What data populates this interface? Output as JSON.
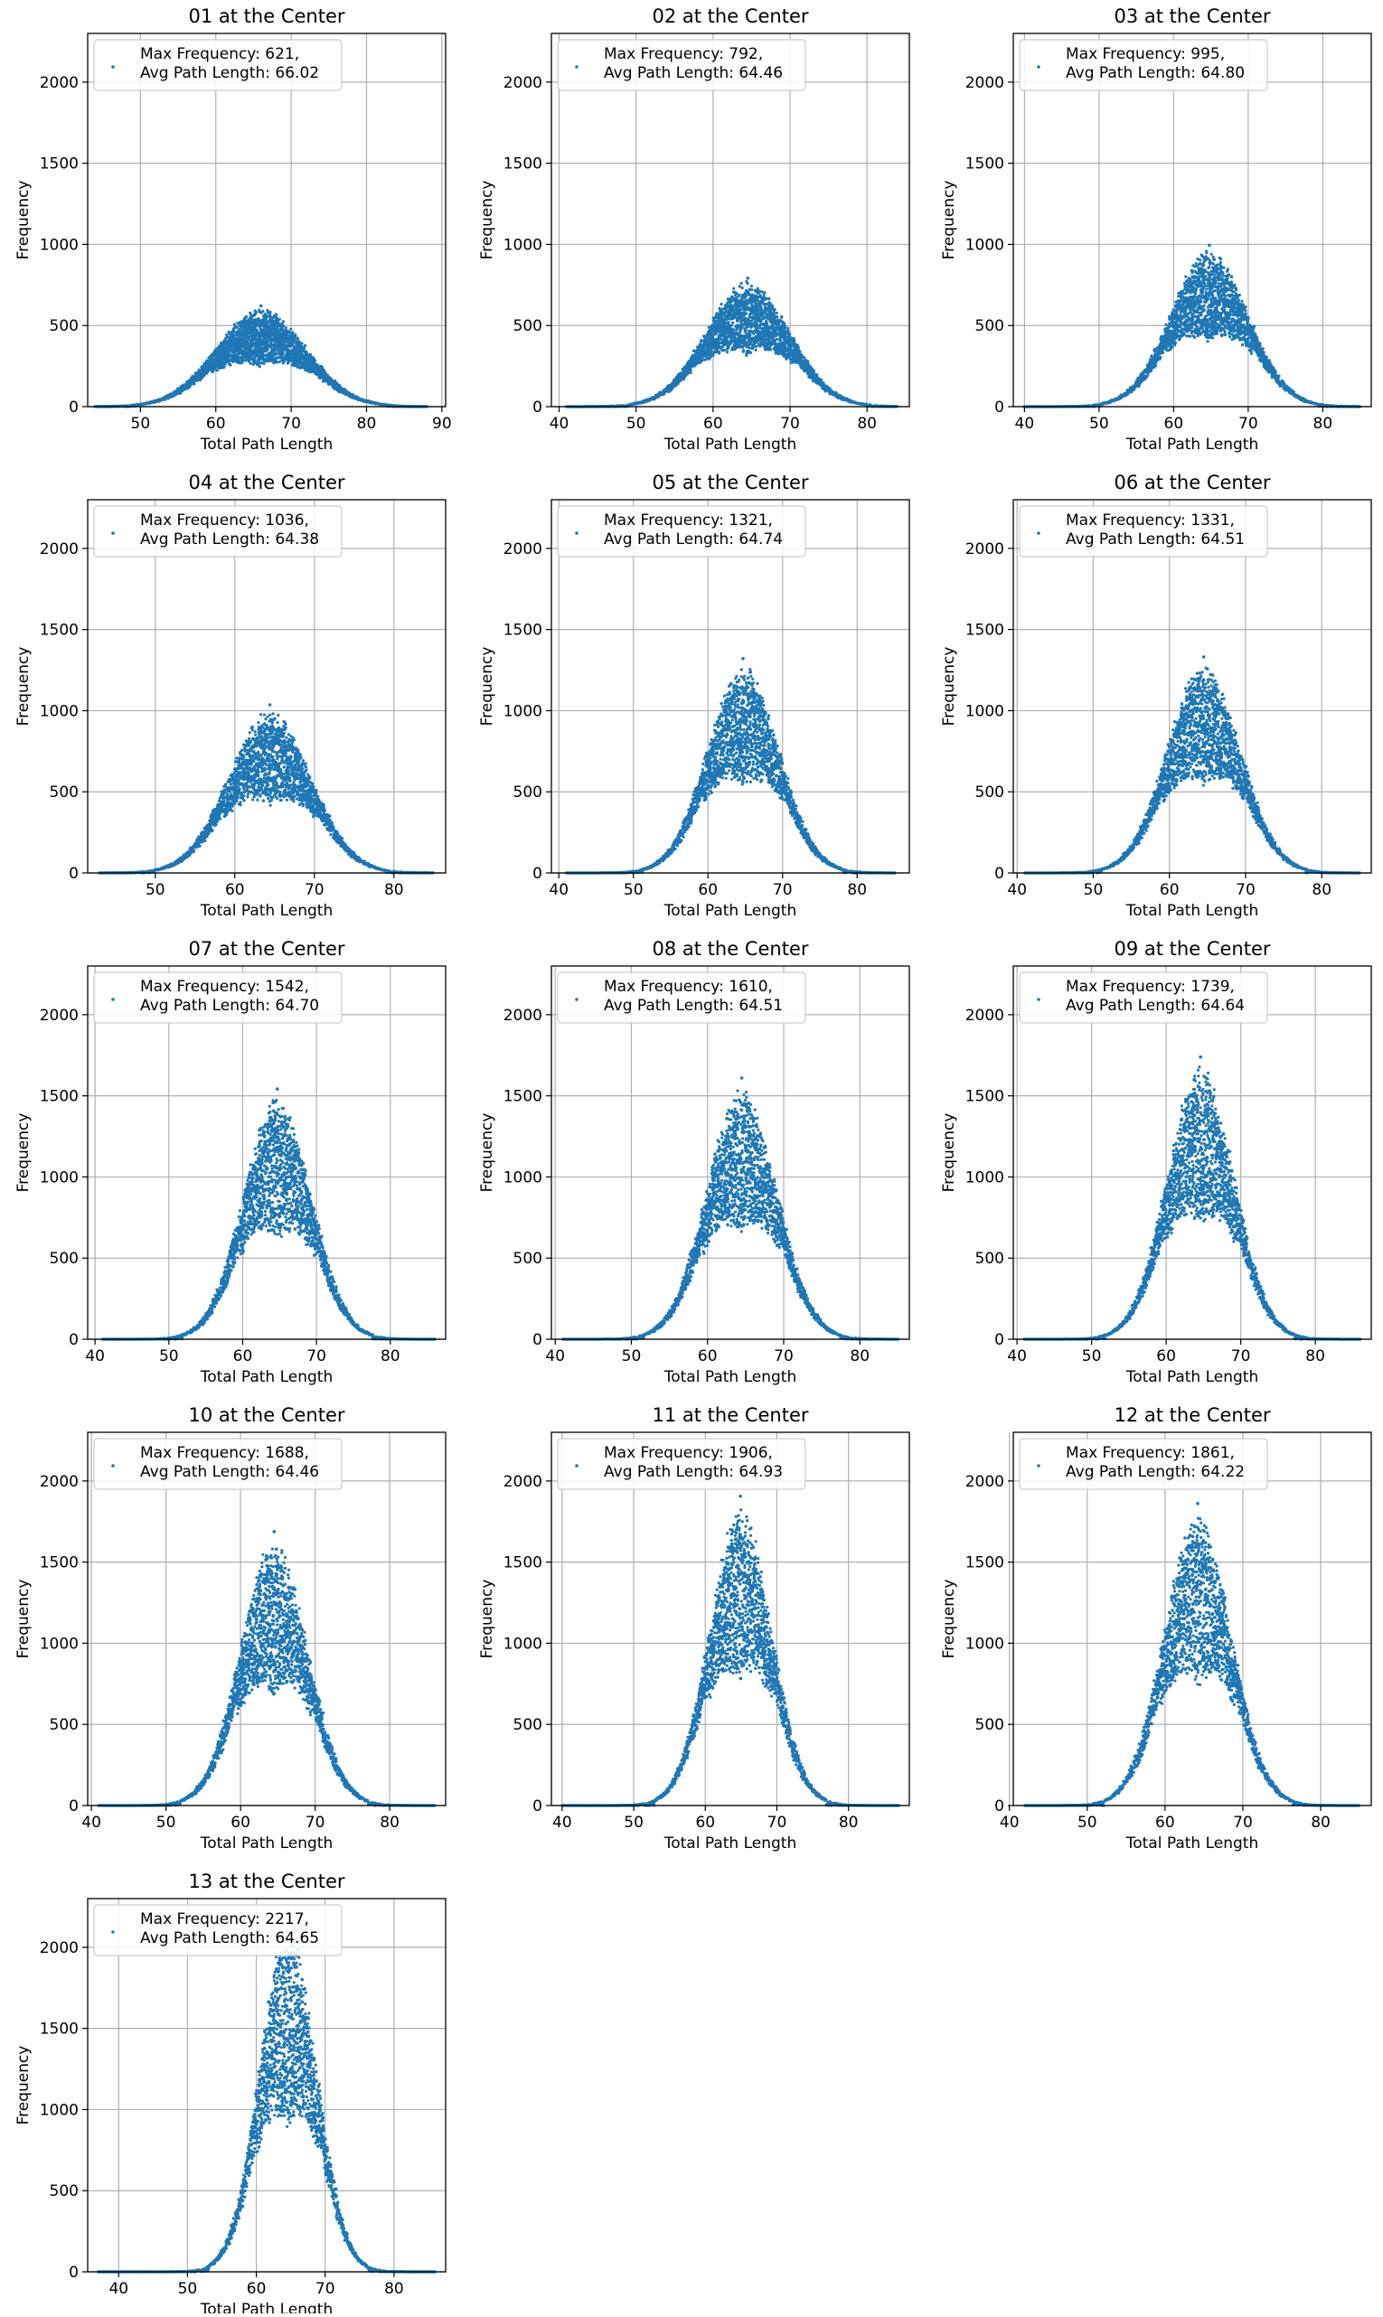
{
  "figure": {
    "background": "#ffffff",
    "marker_color": "#1f77b4",
    "grid_color": "#b0b0b0"
  },
  "chart_data": [
    {
      "type": "scatter",
      "title": "01 at the Center",
      "xlabel": "Total Path Length",
      "ylabel": "Frequency",
      "legend": [
        "Max Frequency: 621,",
        "Avg Path Length: 66.02"
      ],
      "legend_placement": "top-left",
      "xlim": [
        43,
        90.5
      ],
      "ylim": [
        0,
        2300
      ],
      "xticks": [
        50,
        60,
        70,
        80,
        90
      ],
      "yticks": [
        0,
        500,
        1000,
        1500,
        2000
      ],
      "grid": true,
      "max_frequency": 621,
      "avg_path_length": 66.02,
      "peak_x": 66.0,
      "spread": 6.0,
      "extent": [
        44,
        88
      ]
    },
    {
      "type": "scatter",
      "title": "02 at the Center",
      "xlabel": "Total Path Length",
      "ylabel": "Frequency",
      "legend": [
        "Max Frequency: 792,",
        "Avg Path Length: 64.46"
      ],
      "legend_placement": "top-left",
      "xlim": [
        39,
        85.5
      ],
      "ylim": [
        0,
        2300
      ],
      "xticks": [
        40,
        50,
        60,
        70,
        80
      ],
      "yticks": [
        0,
        500,
        1000,
        1500,
        2000
      ],
      "grid": true,
      "max_frequency": 792,
      "avg_path_length": 64.46,
      "peak_x": 64.5,
      "spread": 5.5,
      "extent": [
        41,
        84
      ]
    },
    {
      "type": "scatter",
      "title": "03 at the Center",
      "xlabel": "Total Path Length",
      "ylabel": "Frequency",
      "legend": [
        "Max Frequency: 995,",
        "Avg Path Length: 64.80"
      ],
      "legend_placement": "top-left",
      "xlim": [
        38.5,
        86.5
      ],
      "ylim": [
        0,
        2300
      ],
      "xticks": [
        40,
        50,
        60,
        70,
        80
      ],
      "yticks": [
        0,
        500,
        1000,
        1500,
        2000
      ],
      "grid": true,
      "max_frequency": 995,
      "avg_path_length": 64.8,
      "peak_x": 64.8,
      "spread": 5.2,
      "extent": [
        40,
        85
      ]
    },
    {
      "type": "scatter",
      "title": "04 at the Center",
      "xlabel": "Total Path Length",
      "ylabel": "Frequency",
      "legend": [
        "Max Frequency: 1036,",
        "Avg Path Length: 64.38"
      ],
      "legend_placement": "top-left",
      "xlim": [
        41.5,
        86.5
      ],
      "ylim": [
        0,
        2300
      ],
      "xticks": [
        50,
        60,
        70,
        80
      ],
      "yticks": [
        0,
        500,
        1000,
        1500,
        2000
      ],
      "grid": true,
      "max_frequency": 1036,
      "avg_path_length": 64.38,
      "peak_x": 64.4,
      "spread": 5.2,
      "extent": [
        43,
        85
      ]
    },
    {
      "type": "scatter",
      "title": "05 at the Center",
      "xlabel": "Total Path Length",
      "ylabel": "Frequency",
      "legend": [
        "Max Frequency: 1321,",
        "Avg Path Length: 64.74"
      ],
      "legend_placement": "top-left",
      "xlim": [
        39,
        87
      ],
      "ylim": [
        0,
        2300
      ],
      "xticks": [
        40,
        50,
        60,
        70,
        80
      ],
      "yticks": [
        0,
        500,
        1000,
        1500,
        2000
      ],
      "grid": true,
      "max_frequency": 1321,
      "avg_path_length": 64.74,
      "peak_x": 64.7,
      "spread": 4.8,
      "extent": [
        41,
        85
      ]
    },
    {
      "type": "scatter",
      "title": "06 at the Center",
      "xlabel": "Total Path Length",
      "ylabel": "Frequency",
      "legend": [
        "Max Frequency: 1331,",
        "Avg Path Length: 64.51"
      ],
      "legend_placement": "top-left",
      "xlim": [
        39.5,
        86.5
      ],
      "ylim": [
        0,
        2300
      ],
      "xticks": [
        40,
        50,
        60,
        70,
        80
      ],
      "yticks": [
        0,
        500,
        1000,
        1500,
        2000
      ],
      "grid": true,
      "max_frequency": 1331,
      "avg_path_length": 64.51,
      "peak_x": 64.5,
      "spread": 4.8,
      "extent": [
        41,
        85
      ]
    },
    {
      "type": "scatter",
      "title": "07 at the Center",
      "xlabel": "Total Path Length",
      "ylabel": "Frequency",
      "legend": [
        "Max Frequency: 1542,",
        "Avg Path Length: 64.70"
      ],
      "legend_placement": "top-left",
      "xlim": [
        39,
        87.5
      ],
      "ylim": [
        0,
        2300
      ],
      "xticks": [
        40,
        50,
        60,
        70,
        80
      ],
      "yticks": [
        0,
        500,
        1000,
        1500,
        2000
      ],
      "grid": true,
      "max_frequency": 1542,
      "avg_path_length": 64.7,
      "peak_x": 64.7,
      "spread": 4.6,
      "extent": [
        41,
        86
      ]
    },
    {
      "type": "scatter",
      "title": "08 at the Center",
      "xlabel": "Total Path Length",
      "ylabel": "Frequency",
      "legend": [
        "Max Frequency: 1610,",
        "Avg Path Length: 64.51"
      ],
      "legend_placement": "top-left",
      "xlim": [
        39.5,
        86.5
      ],
      "ylim": [
        0,
        2300
      ],
      "xticks": [
        40,
        50,
        60,
        70,
        80
      ],
      "yticks": [
        0,
        500,
        1000,
        1500,
        2000
      ],
      "grid": true,
      "max_frequency": 1610,
      "avg_path_length": 64.51,
      "peak_x": 64.5,
      "spread": 4.6,
      "extent": [
        41,
        85
      ]
    },
    {
      "type": "scatter",
      "title": "09 at the Center",
      "xlabel": "Total Path Length",
      "ylabel": "Frequency",
      "legend": [
        "Max Frequency: 1739,",
        "Avg Path Length: 64.64"
      ],
      "legend_placement": "top-left",
      "xlim": [
        39.5,
        87.5
      ],
      "ylim": [
        0,
        2300
      ],
      "xticks": [
        40,
        50,
        60,
        70,
        80
      ],
      "yticks": [
        0,
        500,
        1000,
        1500,
        2000
      ],
      "grid": true,
      "max_frequency": 1739,
      "avg_path_length": 64.64,
      "peak_x": 64.6,
      "spread": 4.5,
      "extent": [
        41,
        86
      ]
    },
    {
      "type": "scatter",
      "title": "10 at the Center",
      "xlabel": "Total Path Length",
      "ylabel": "Frequency",
      "legend": [
        "Max Frequency: 1688,",
        "Avg Path Length: 64.46"
      ],
      "legend_placement": "top-left",
      "xlim": [
        39.5,
        87.5
      ],
      "ylim": [
        0,
        2300
      ],
      "xticks": [
        40,
        50,
        60,
        70,
        80
      ],
      "yticks": [
        0,
        500,
        1000,
        1500,
        2000
      ],
      "grid": true,
      "max_frequency": 1688,
      "avg_path_length": 64.46,
      "peak_x": 64.5,
      "spread": 4.5,
      "extent": [
        41,
        86
      ]
    },
    {
      "type": "scatter",
      "title": "11 at the Center",
      "xlabel": "Total Path Length",
      "ylabel": "Frequency",
      "legend": [
        "Max Frequency: 1906,",
        "Avg Path Length: 64.93"
      ],
      "legend_placement": "top-left",
      "xlim": [
        38.5,
        88.5
      ],
      "ylim": [
        0,
        2300
      ],
      "xticks": [
        40,
        50,
        60,
        70,
        80
      ],
      "yticks": [
        0,
        500,
        1000,
        1500,
        2000
      ],
      "grid": true,
      "max_frequency": 1906,
      "avg_path_length": 64.93,
      "peak_x": 64.9,
      "spread": 4.3,
      "extent": [
        40,
        87
      ]
    },
    {
      "type": "scatter",
      "title": "12 at the Center",
      "xlabel": "Total Path Length",
      "ylabel": "Frequency",
      "legend": [
        "Max Frequency: 1861,",
        "Avg Path Length: 64.22"
      ],
      "legend_placement": "top-left",
      "xlim": [
        40.5,
        86.5
      ],
      "ylim": [
        0,
        2300
      ],
      "xticks": [
        40,
        50,
        60,
        70,
        80
      ],
      "yticks": [
        0,
        500,
        1000,
        1500,
        2000
      ],
      "grid": true,
      "max_frequency": 1861,
      "avg_path_length": 64.22,
      "peak_x": 64.2,
      "spread": 4.3,
      "extent": [
        42,
        85
      ]
    },
    {
      "type": "scatter",
      "title": "13 at the Center",
      "xlabel": "Total Path Length",
      "ylabel": "Frequency",
      "legend": [
        "Max Frequency: 2217,",
        "Avg Path Length: 64.65"
      ],
      "legend_placement": "top-left",
      "xlim": [
        35.5,
        87.5
      ],
      "ylim": [
        0,
        2300
      ],
      "xticks": [
        40,
        50,
        60,
        70,
        80
      ],
      "yticks": [
        0,
        500,
        1000,
        1500,
        2000
      ],
      "grid": true,
      "max_frequency": 2217,
      "avg_path_length": 64.65,
      "peak_x": 64.6,
      "spread": 4.1,
      "extent": [
        37,
        86
      ]
    }
  ]
}
